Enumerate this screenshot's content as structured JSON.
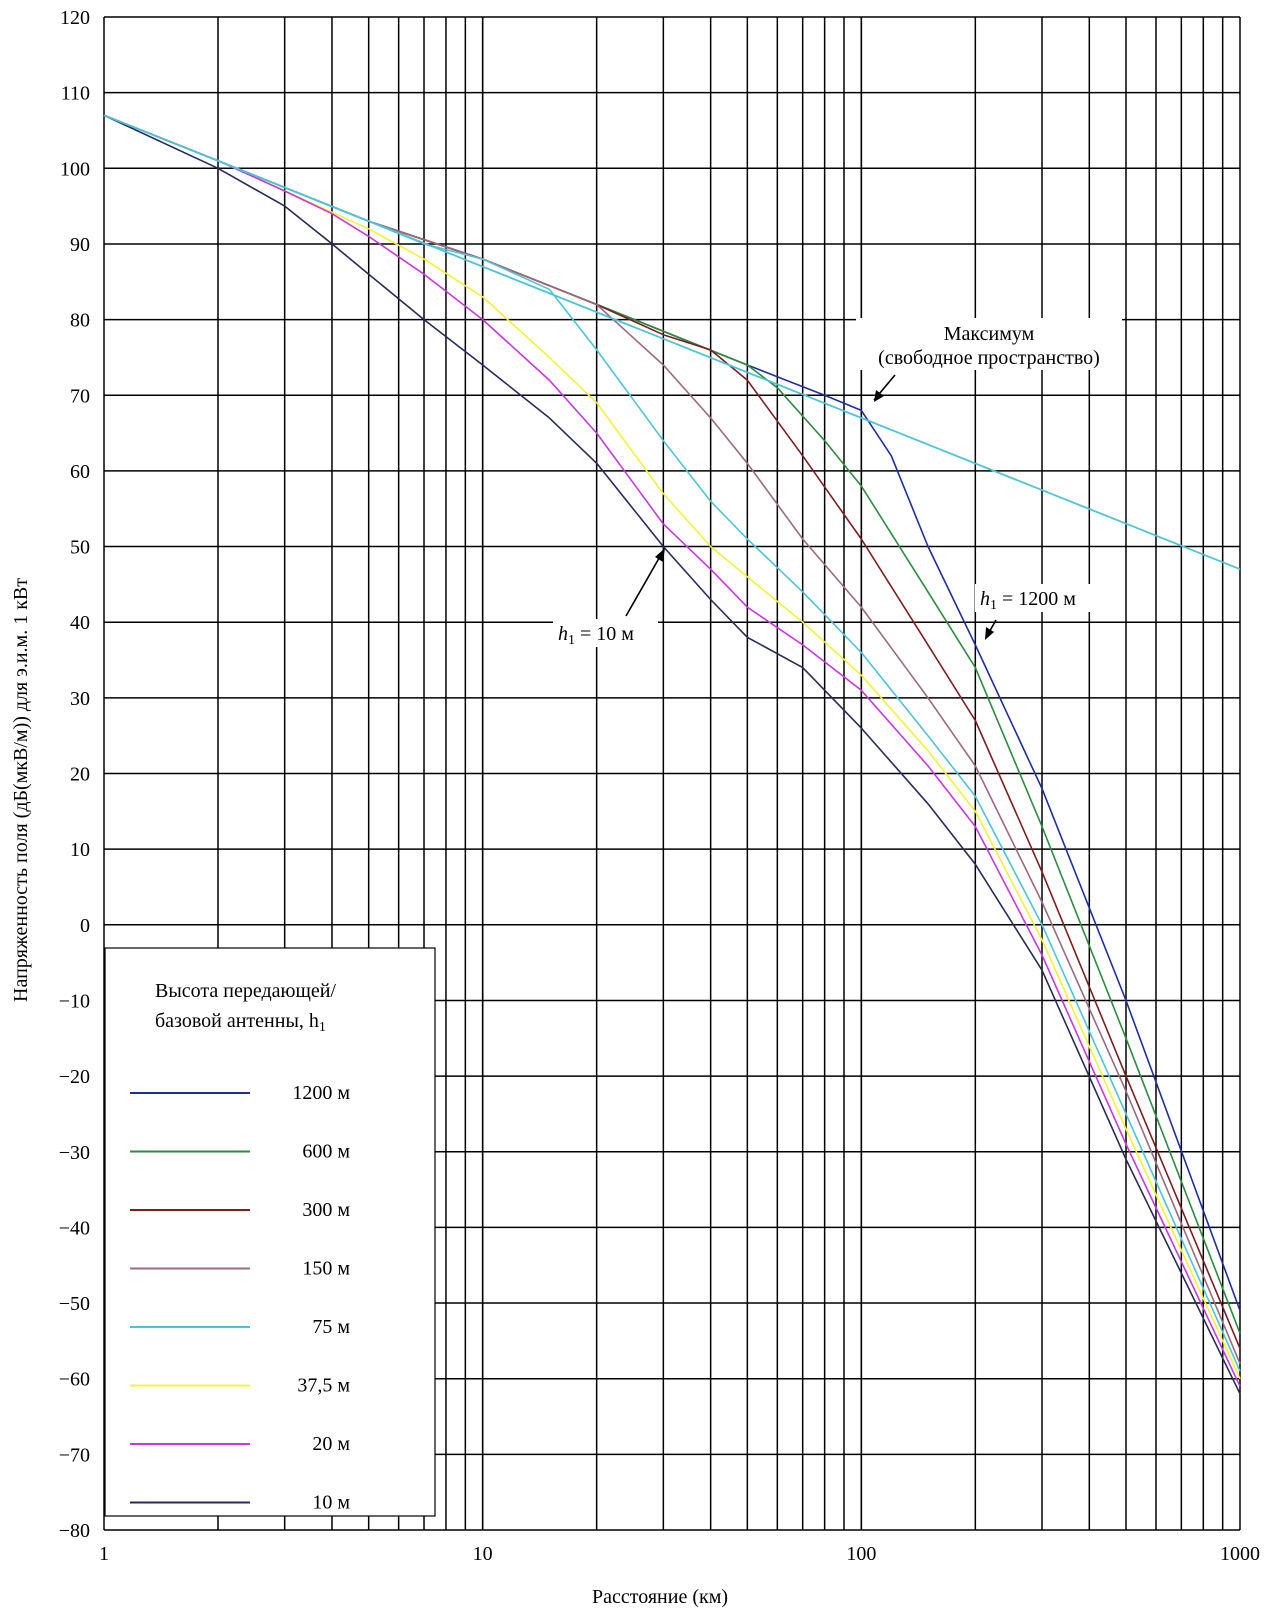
{
  "chart_data": {
    "type": "line",
    "xlabel": "Расстояние (км)",
    "ylabel": "Напряженность поля (дБ(мкВ/м)) для э.и.м. 1 кВт",
    "x_scale": "log",
    "xlim": [
      1,
      1000
    ],
    "ylim": [
      -80,
      120
    ],
    "grid": true,
    "x_ticks": [
      "1",
      "10",
      "100",
      "1000"
    ],
    "y_ticks": [
      "120",
      "110",
      "100",
      "90",
      "80",
      "70",
      "60",
      "50",
      "40",
      "30",
      "20",
      "10",
      "0",
      "−10",
      "−20",
      "−30",
      "−40",
      "−50",
      "−60",
      "−70",
      "−80"
    ],
    "legend": {
      "title_line1": "Высота передающей/",
      "title_line2": "базовой антенны, h",
      "title_sub": "1",
      "placement": "bottom-left",
      "entries": [
        "1200 м",
        "600 м",
        "300 м",
        "150 м",
        "75 м",
        "37,5 м",
        "20 м",
        "10 м"
      ]
    },
    "annotations": {
      "max_line1": "Максимум",
      "max_line2": "(свободное пространство)",
      "h_var": "h",
      "h_sub": "1",
      "h_1200": " = 1200 м",
      "h_10": " = 10 м"
    },
    "colors": {
      "free_space": "#4fc3d4",
      "grid": "#000000"
    },
    "free_space": {
      "x": [
        1,
        1000
      ],
      "y": [
        107,
        47
      ]
    },
    "series": [
      {
        "name": "1200 м",
        "color": "#1f2f9a",
        "x": [
          1,
          2,
          5,
          10,
          20,
          50,
          80,
          100,
          120,
          150,
          200,
          300,
          500,
          1000
        ],
        "y": [
          107,
          101,
          93,
          88,
          82,
          74,
          70,
          68,
          62,
          50,
          37,
          18,
          -10,
          -51
        ]
      },
      {
        "name": "600 м",
        "color": "#2e8a3e",
        "x": [
          1,
          2,
          5,
          10,
          20,
          50,
          60,
          80,
          100,
          150,
          200,
          300,
          500,
          1000
        ],
        "y": [
          107,
          101,
          93,
          88,
          82,
          74,
          71,
          64,
          58,
          44,
          34,
          13,
          -15,
          -54
        ]
      },
      {
        "name": "300 м",
        "color": "#7a1f1f",
        "x": [
          1,
          2,
          5,
          10,
          20,
          30,
          40,
          50,
          70,
          100,
          150,
          200,
          300,
          500,
          1000
        ],
        "y": [
          107,
          101,
          93,
          88,
          82,
          78,
          76,
          72,
          62,
          51,
          37,
          27,
          7,
          -20,
          -56
        ]
      },
      {
        "name": "150 м",
        "color": "#9a6a7f",
        "x": [
          1,
          2,
          5,
          10,
          20,
          30,
          40,
          50,
          70,
          100,
          150,
          200,
          300,
          500,
          1000
        ],
        "y": [
          107,
          101,
          93,
          88,
          82,
          74,
          67,
          61,
          51,
          42,
          30,
          21,
          3,
          -22,
          -58
        ]
      },
      {
        "name": "75 м",
        "color": "#4fc3d4",
        "x": [
          1,
          2,
          5,
          7,
          10,
          15,
          20,
          30,
          40,
          50,
          70,
          100,
          150,
          200,
          300,
          500,
          1000
        ],
        "y": [
          107,
          101,
          93,
          90,
          88,
          84,
          76,
          64,
          56,
          51,
          44,
          36,
          25,
          17,
          0,
          -25,
          -59
        ]
      },
      {
        "name": "37,5 м",
        "color": "#f2f23a",
        "x": [
          1,
          2,
          5,
          7,
          10,
          15,
          20,
          30,
          40,
          50,
          70,
          100,
          150,
          200,
          300,
          500,
          1000
        ],
        "y": [
          107,
          101,
          92,
          88,
          83,
          75,
          69,
          57,
          50,
          46,
          40,
          33,
          23,
          15,
          -2,
          -27,
          -60
        ]
      },
      {
        "name": "20 м",
        "color": "#c43ad8",
        "x": [
          1,
          2,
          3,
          4,
          5,
          7,
          10,
          15,
          20,
          30,
          40,
          50,
          70,
          100,
          150,
          200,
          300,
          500,
          1000
        ],
        "y": [
          107,
          101,
          97,
          94,
          91,
          86,
          80,
          72,
          65,
          53,
          47,
          42,
          37,
          31,
          21,
          13,
          -4,
          -29,
          -61
        ]
      },
      {
        "name": "10 м",
        "color": "#2a2a5a",
        "x": [
          1,
          2,
          3,
          4,
          5,
          7,
          10,
          15,
          20,
          30,
          40,
          50,
          70,
          100,
          150,
          200,
          300,
          500,
          1000
        ],
        "y": [
          107,
          100,
          95,
          90,
          86,
          80,
          74,
          67,
          61,
          50,
          43,
          38,
          34,
          26,
          16,
          8,
          -6,
          -31,
          -62
        ]
      }
    ]
  }
}
